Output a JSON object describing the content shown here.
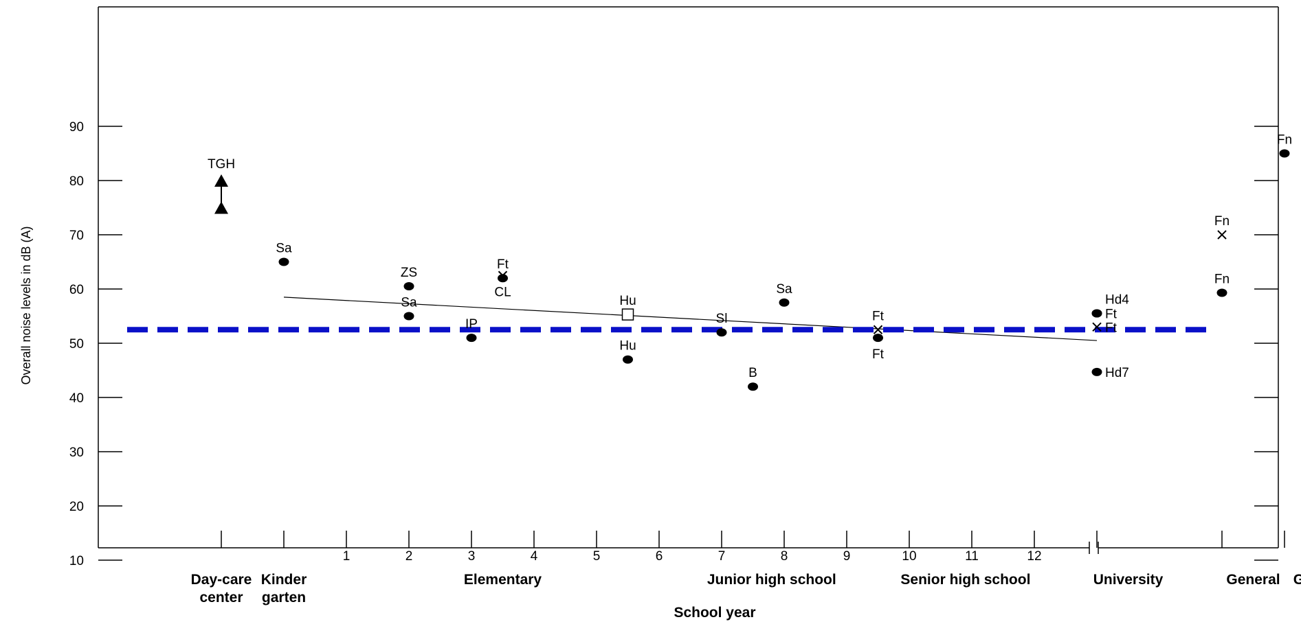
{
  "chart_data": {
    "type": "scatter",
    "title": "",
    "xlabel": "School year",
    "ylabel": "Overall noise levels in dB (A)",
    "ylim": [
      0,
      100
    ],
    "y_ticks": [
      "10",
      "20",
      "30",
      "40",
      "50",
      "60",
      "70",
      "80",
      "90"
    ],
    "x_ticks": [
      {
        "x": 1,
        "label": "1"
      },
      {
        "x": 2,
        "label": "2"
      },
      {
        "x": 3,
        "label": "3"
      },
      {
        "x": 4,
        "label": "4"
      },
      {
        "x": 5,
        "label": "5"
      },
      {
        "x": 6,
        "label": "6"
      },
      {
        "x": 7,
        "label": "7"
      },
      {
        "x": 8,
        "label": "8"
      },
      {
        "x": 9,
        "label": "9"
      },
      {
        "x": 10,
        "label": "10"
      },
      {
        "x": 11,
        "label": "11"
      },
      {
        "x": 12,
        "label": "12"
      }
    ],
    "categories": [
      {
        "x": -1,
        "line1": "Day-care",
        "line2": "center"
      },
      {
        "x": 0,
        "line1": "Kinder",
        "line2": "garten"
      },
      {
        "x": 3.5,
        "line1": "Elementary",
        "line2": ""
      },
      {
        "x": 7.8,
        "line1": "Junior high school",
        "line2": ""
      },
      {
        "x": 10.9,
        "line1": "Senior high school",
        "line2": ""
      },
      {
        "x": 13.5,
        "line1": "University",
        "line2": ""
      },
      {
        "x": 15.5,
        "line1": "General",
        "line2": ""
      },
      {
        "x": 16.8,
        "line1": "Gymnasium",
        "line2": ""
      }
    ],
    "points": [
      {
        "x": -1,
        "y": 80,
        "marker": "triangle",
        "label": "TGH",
        "label_pos": "above"
      },
      {
        "x": -1,
        "y": 75,
        "marker": "triangle",
        "label": "",
        "label_pos": "above"
      },
      {
        "x": 0,
        "y": 65,
        "marker": "dot",
        "label": "Sa",
        "label_pos": "above"
      },
      {
        "x": 2,
        "y": 60.5,
        "marker": "dot",
        "label": "ZS",
        "label_pos": "above"
      },
      {
        "x": 2,
        "y": 55,
        "marker": "dot",
        "label": "Sa",
        "label_pos": "above"
      },
      {
        "x": 3,
        "y": 51,
        "marker": "dot",
        "label": "IP",
        "label_pos": "above"
      },
      {
        "x": 3.5,
        "y": 62,
        "marker": "dot",
        "label": "Ft",
        "label_pos": "above"
      },
      {
        "x": 3.5,
        "y": 62.5,
        "marker": "x",
        "label": "CL",
        "label_pos": "below"
      },
      {
        "x": 5.5,
        "y": 55.3,
        "marker": "square",
        "label": "Hu",
        "label_pos": "above"
      },
      {
        "x": 5.5,
        "y": 47,
        "marker": "dot",
        "label": "Hu",
        "label_pos": "above"
      },
      {
        "x": 7,
        "y": 52,
        "marker": "dot",
        "label": "Sl",
        "label_pos": "above"
      },
      {
        "x": 7.5,
        "y": 42,
        "marker": "dot",
        "label": "B",
        "label_pos": "above"
      },
      {
        "x": 8,
        "y": 57.5,
        "marker": "dot",
        "label": "Sa",
        "label_pos": "above"
      },
      {
        "x": 9.5,
        "y": 52.5,
        "marker": "x",
        "label": "Ft",
        "label_pos": "above"
      },
      {
        "x": 9.5,
        "y": 51,
        "marker": "dot",
        "label": "Ft",
        "label_pos": "below"
      },
      {
        "x": 13,
        "y": 55.5,
        "marker": "dot",
        "label": "Hd4",
        "label_pos": "right-up"
      },
      {
        "x": 13,
        "y": 55.5,
        "marker": "dot",
        "label": "Ft",
        "label_pos": "right"
      },
      {
        "x": 13,
        "y": 53,
        "marker": "x",
        "label": "Ft",
        "label_pos": "right"
      },
      {
        "x": 13,
        "y": 44.7,
        "marker": "dot",
        "label": "Hd7",
        "label_pos": "right"
      },
      {
        "x": 15,
        "y": 59.3,
        "marker": "dot",
        "label": "Fn",
        "label_pos": "above"
      },
      {
        "x": 15,
        "y": 70,
        "marker": "x",
        "label": "Fn",
        "label_pos": "above"
      },
      {
        "x": 16,
        "y": 85,
        "marker": "dot",
        "label": "Fn",
        "label_pos": "above"
      }
    ],
    "trend_line": {
      "x": [
        0,
        13
      ],
      "y": [
        58.5,
        50.5
      ]
    },
    "reference_line": {
      "y": 52.5,
      "color": "#0a10c8",
      "style": "dashed"
    },
    "axis_break": true,
    "grid": false
  }
}
